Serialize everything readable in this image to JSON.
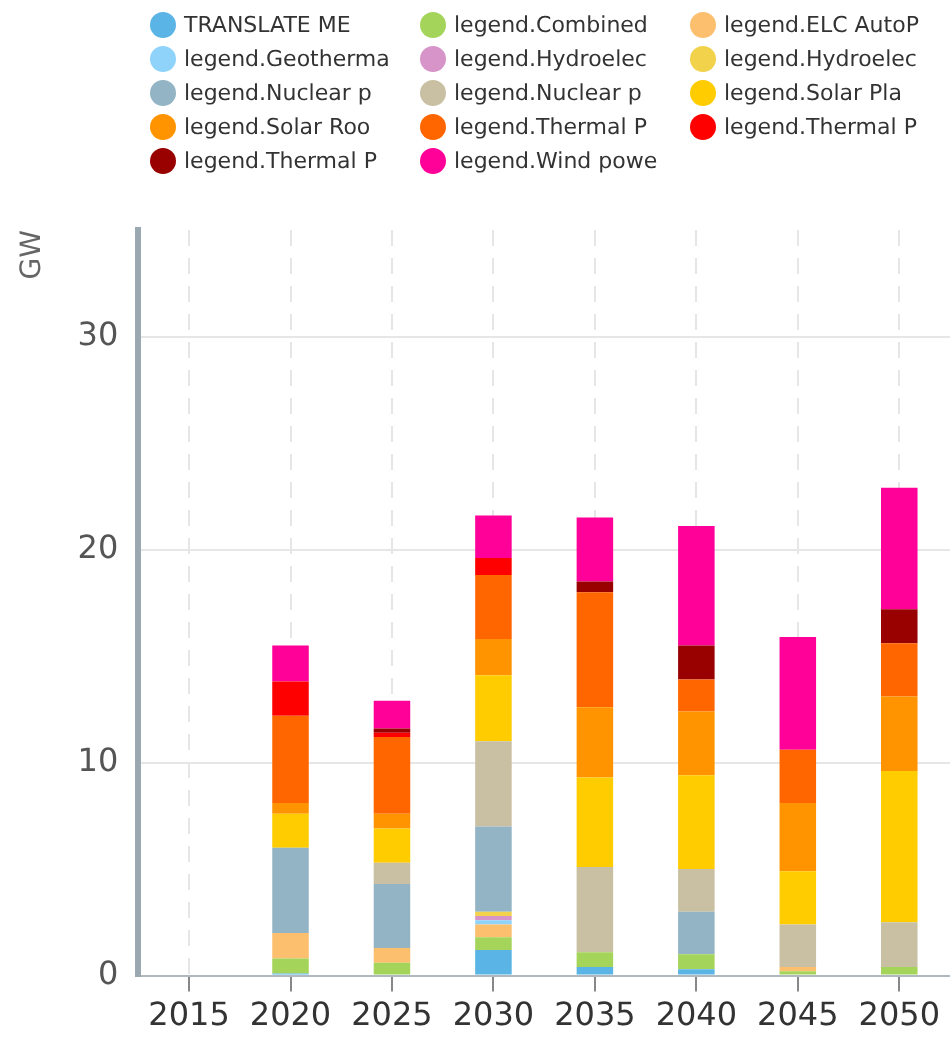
{
  "chart_data": {
    "type": "bar",
    "stacked": true,
    "ylabel": "GW",
    "categories": [
      "2015",
      "2020",
      "2025",
      "2030",
      "2035",
      "2040",
      "2045",
      "2050"
    ],
    "ylim": [
      0,
      35
    ],
    "yticks": [
      0,
      10,
      20,
      30
    ],
    "grid": true,
    "legend": "top",
    "marker": "circle",
    "series": [
      {
        "name": "TRANSLATE ME",
        "color": "#5ab4e5",
        "values": [
          null,
          0.1,
          null,
          1.2,
          0.4,
          0.3,
          null,
          null
        ]
      },
      {
        "name": "legend.Combined",
        "color": "#a5d45a",
        "values": [
          null,
          0.7,
          0.6,
          0.6,
          0.7,
          0.7,
          0.2,
          0.4
        ]
      },
      {
        "name": "legend.ELC AutoP",
        "color": "#fbbf6e",
        "values": [
          null,
          1.2,
          0.7,
          0.6,
          null,
          null,
          0.2,
          null
        ]
      },
      {
        "name": "legend.Geotherma",
        "color": "#8fd3fb",
        "values": [
          null,
          null,
          null,
          0.2,
          null,
          null,
          null,
          null
        ]
      },
      {
        "name": "legend.Hydroelec",
        "color": "#d694c8",
        "values": [
          null,
          null,
          null,
          0.2,
          null,
          null,
          null,
          null
        ]
      },
      {
        "name": "legend.Hydroelec",
        "color": "#f2d14b",
        "values": [
          null,
          null,
          null,
          0.2,
          null,
          null,
          null,
          null
        ]
      },
      {
        "name": "legend.Nuclear p",
        "color": "#92b4c4",
        "values": [
          null,
          4.0,
          3.0,
          4.0,
          null,
          2.0,
          null,
          null
        ]
      },
      {
        "name": "legend.Nuclear p",
        "color": "#c9c0a3",
        "values": [
          null,
          null,
          1.0,
          4.0,
          4.0,
          2.0,
          2.0,
          2.1
        ]
      },
      {
        "name": "legend.Solar Pla",
        "color": "#ffcc00",
        "values": [
          null,
          1.6,
          1.6,
          3.1,
          4.2,
          4.4,
          2.5,
          7.1
        ]
      },
      {
        "name": "legend.Solar Roo",
        "color": "#ff9400",
        "values": [
          null,
          0.5,
          0.7,
          1.7,
          3.3,
          3.0,
          3.2,
          3.5
        ]
      },
      {
        "name": "legend.Thermal P",
        "color": "#ff6600",
        "values": [
          null,
          4.1,
          3.6,
          3.0,
          5.4,
          1.5,
          2.5,
          2.5
        ]
      },
      {
        "name": "legend.Thermal P",
        "color": "#ff0000",
        "values": [
          null,
          1.6,
          0.2,
          0.8,
          null,
          null,
          null,
          null
        ]
      },
      {
        "name": "legend.Thermal P",
        "color": "#990000",
        "values": [
          null,
          null,
          0.2,
          null,
          0.5,
          1.6,
          null,
          1.6
        ]
      },
      {
        "name": "legend.Wind powe",
        "color": "#ff0099",
        "values": [
          null,
          1.7,
          1.3,
          2.0,
          3.0,
          5.6,
          5.3,
          5.7
        ]
      }
    ]
  }
}
